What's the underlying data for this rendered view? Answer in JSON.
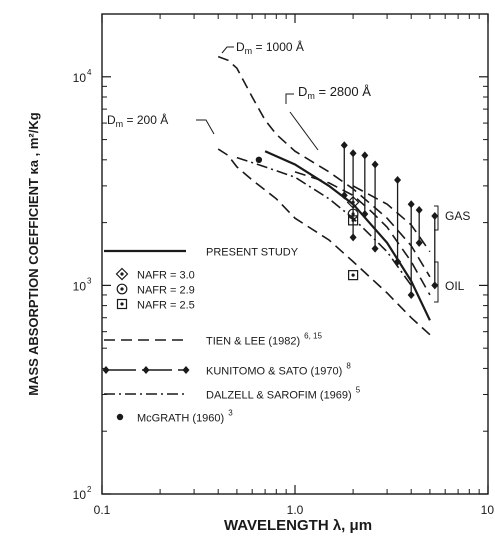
{
  "chart_data": {
    "type": "line",
    "xlabel": "WAVELENGTH  λ,  μm",
    "ylabel": "MASS ABSORPTION COEFFICIENT   κa , m²/Kg",
    "xscale": "log",
    "yscale": "log",
    "xlim": [
      0.1,
      10
    ],
    "ylim": [
      100,
      20000
    ],
    "x_ticks": [
      {
        "v": 0.1,
        "label": "0.1"
      },
      {
        "v": 1,
        "label": "1.0"
      },
      {
        "v": 10,
        "label": "10"
      }
    ],
    "y_ticks": [
      {
        "v": 100,
        "label": "10",
        "exp": "2"
      },
      {
        "v": 1000,
        "label": "10",
        "exp": "3"
      },
      {
        "v": 10000,
        "label": "10",
        "exp": "4"
      }
    ],
    "grid": false,
    "legend_position": "lower-left",
    "legend": [
      {
        "label": "PRESENT STUDY",
        "sup": "",
        "style": "solid"
      },
      {
        "label": "NAFR = 3.0",
        "sup": "",
        "style": "diamond-dot"
      },
      {
        "label": "NAFR = 2.9",
        "sup": "",
        "style": "circle-dot"
      },
      {
        "label": "NAFR = 2.5",
        "sup": "",
        "style": "square-dot"
      },
      {
        "label": "TIEN & LEE (1982)",
        "sup": "6, 15",
        "style": "dashed"
      },
      {
        "label": "KUNITOMO & SATO (1970)",
        "sup": "8",
        "style": "diamond-line"
      },
      {
        "label": "DALZELL & SAROFIM (1969)",
        "sup": "5",
        "style": "dashdot"
      },
      {
        "label": "McGRATH (1960)",
        "sup": "3",
        "style": "dot"
      }
    ],
    "annotations": [
      {
        "text": "D",
        "sub": "m",
        "rest": " = 1000 Å"
      },
      {
        "text": "D",
        "sub": "m",
        "rest": " = 2800 Å"
      },
      {
        "text": "D",
        "sub": "m",
        "rest": " = 200 Å"
      },
      {
        "text": "GAS",
        "sub": "",
        "rest": ""
      },
      {
        "text": "OIL",
        "sub": "",
        "rest": ""
      }
    ],
    "series": [
      {
        "style": "dashed",
        "x": [
          0.4,
          0.45,
          0.5,
          0.6,
          0.7,
          0.8,
          1.0,
          1.5,
          2.0,
          3.0,
          4.0,
          5.0
        ],
        "y": [
          12500,
          12000,
          11000,
          8000,
          6200,
          5300,
          4400,
          3500,
          2900,
          2100,
          1550,
          1100
        ]
      },
      {
        "style": "dashed",
        "x": [
          1.0,
          1.5,
          2.0,
          2.5,
          3.0,
          4.0,
          5.0
        ],
        "y": [
          3500,
          3100,
          2700,
          2250,
          1900,
          1300,
          900
        ]
      },
      {
        "style": "dashed",
        "x": [
          0.4,
          0.45,
          0.5,
          0.6,
          0.8,
          1.0,
          1.5,
          2.0,
          3.0,
          4.0,
          5.0
        ],
        "y": [
          4500,
          4200,
          3700,
          3200,
          2600,
          2100,
          1650,
          1300,
          920,
          700,
          580
        ]
      },
      {
        "style": "dashdot",
        "x": [
          0.5,
          0.7,
          1.0,
          1.5,
          2.0,
          3.0,
          4.0
        ],
        "y": [
          4100,
          3700,
          3300,
          2600,
          2100,
          1450,
          1000
        ]
      },
      {
        "style": "solid",
        "x": [
          0.7,
          1.0,
          1.5,
          2.0,
          3.0,
          4.0,
          5.0
        ],
        "y": [
          4400,
          3800,
          3000,
          2450,
          1600,
          1050,
          680
        ]
      },
      {
        "style": "dashed",
        "x": [
          2.0,
          3.0,
          4.0,
          5.0
        ],
        "y": [
          3000,
          2450,
          1950,
          1450
        ]
      }
    ],
    "mcgrath_points": [
      {
        "x": 0.65,
        "y": 4000
      }
    ],
    "nafr_points": [
      {
        "marker": "diamond-dot",
        "x": 2.0,
        "y": 2500
      },
      {
        "marker": "circle-dot",
        "x": 2.0,
        "y": 2200
      },
      {
        "marker": "square-dot",
        "x": 2.0,
        "y": 2050
      },
      {
        "marker": "square-dot",
        "x": 2.0,
        "y": 1120
      }
    ],
    "kunitomo_ranges": [
      {
        "x": 1.8,
        "y_low": 2700,
        "y_high": 4700
      },
      {
        "x": 2.0,
        "y_low": 1700,
        "y_high": 4300
      },
      {
        "x": 2.3,
        "y_low": 2200,
        "y_high": 4200
      },
      {
        "x": 2.6,
        "y_low": 1500,
        "y_high": 3800
      },
      {
        "x": 3.4,
        "y_low": 1300,
        "y_high": 3200
      },
      {
        "x": 4.0,
        "y_low": 900,
        "y_high": 2450
      },
      {
        "x": 4.4,
        "y_low": 1600,
        "y_high": 2300
      },
      {
        "x": 5.3,
        "y_low": 1000,
        "y_high": 2150
      }
    ]
  }
}
